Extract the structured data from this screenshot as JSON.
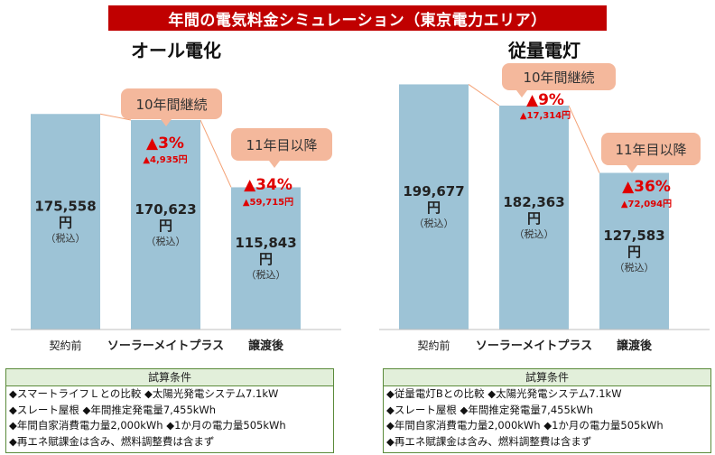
{
  "title": "年間の電気料金シミュレーション（東京電力エリア）",
  "colors": {
    "banner": "#c00000",
    "bar": "#9dc3d6",
    "callout": "#f4b89c",
    "accent": "#e00000",
    "connector": "#f4a276"
  },
  "chart_data": [
    {
      "type": "bar",
      "title": "オール電化",
      "categories": [
        "契約前",
        "ソーラーメイトプラス",
        "譲渡後"
      ],
      "values": [
        175558,
        170623,
        115843
      ],
      "value_labels": [
        "175,558",
        "170,623",
        "115,843"
      ],
      "unit": "円",
      "tax_note": "（税込）",
      "callouts": [
        "10年間継続",
        "11年目以降"
      ],
      "savings": [
        {
          "percent": "▲3%",
          "amount": "▲4,935円"
        },
        {
          "percent": "▲34%",
          "amount": "▲59,715円"
        }
      ]
    },
    {
      "type": "bar",
      "title": "従量電灯",
      "categories": [
        "契約前",
        "ソーラーメイトプラス",
        "譲渡後"
      ],
      "values": [
        199677,
        182363,
        127583
      ],
      "value_labels": [
        "199,677",
        "182,363",
        "127,583"
      ],
      "unit": "円",
      "tax_note": "（税込）",
      "callouts": [
        "10年間継続",
        "11年目以降"
      ],
      "savings": [
        {
          "percent": "▲9%",
          "amount": "▲17,314円"
        },
        {
          "percent": "▲36%",
          "amount": "▲72,094円"
        }
      ]
    }
  ],
  "conditions": [
    {
      "heading": "試算条件",
      "lines": [
        "◆スマートライフＬとの比較 ◆太陽光発電システム7.1kW",
        "◆スレート屋根 ◆年間推定発電量7,455kWh",
        "◆年間自家消費電力量2,000kWh ◆1か月の電力量505kWh",
        "◆再エネ賦課金は含み、燃料調整費は含まず"
      ]
    },
    {
      "heading": "試算条件",
      "lines": [
        "◆従量電灯Bとの比較 ◆太陽光発電システム7.1kW",
        "◆スレート屋根 ◆年間推定発電量7,455kWh",
        "◆年間自家消費電力量2,000kWh ◆1か月の電力量505kWh",
        "◆再エネ賦課金は含み、燃料調整費は含まず"
      ]
    }
  ]
}
